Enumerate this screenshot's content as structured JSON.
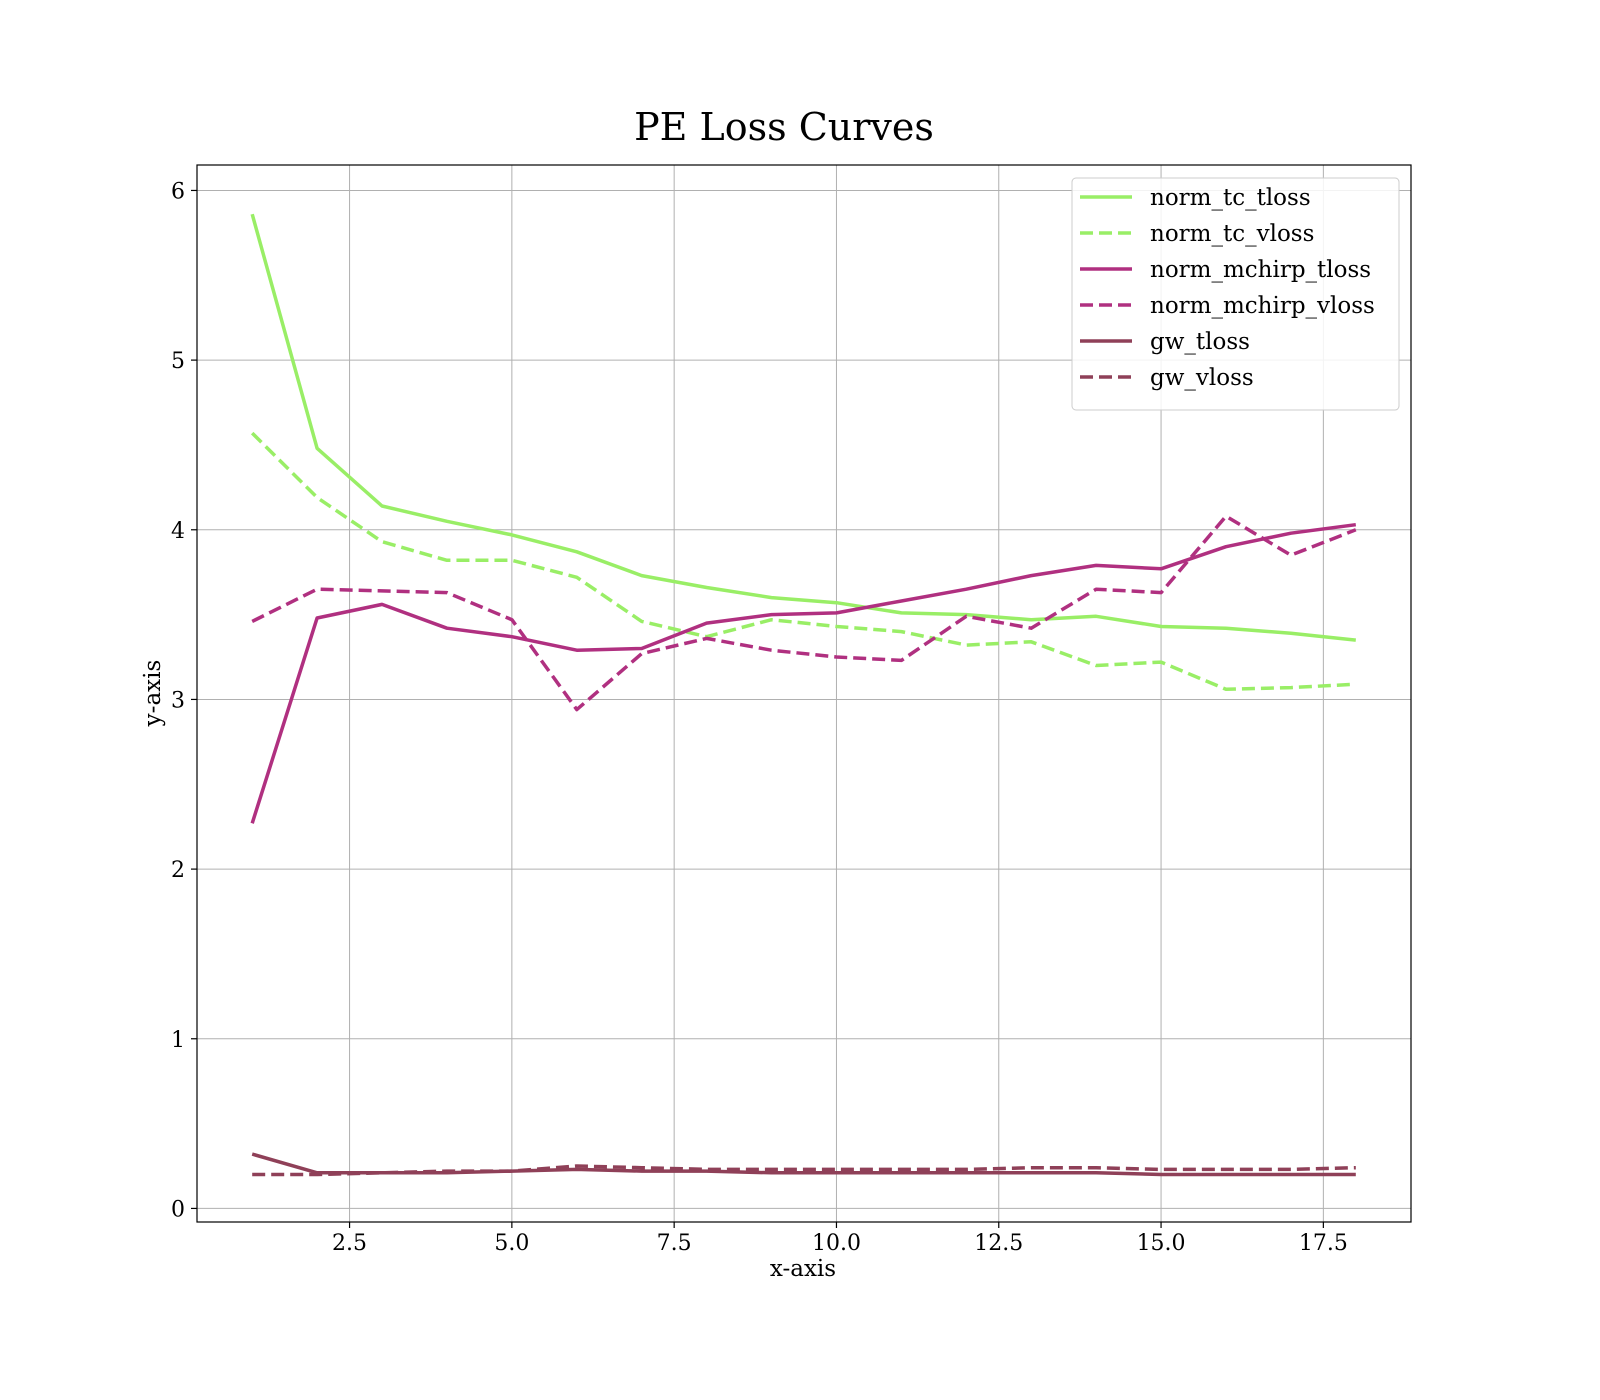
{
  "chart_data": {
    "type": "line",
    "title": "PE Loss Curves",
    "xlabel": "x-axis",
    "ylabel": "y-axis",
    "xlim": [
      0.15,
      18.85
    ],
    "ylim": [
      -0.08,
      6.15
    ],
    "xticks": [
      2.5,
      5.0,
      7.5,
      10.0,
      12.5,
      15.0,
      17.5
    ],
    "xtick_labels": [
      "2.5",
      "5.0",
      "7.5",
      "10.0",
      "12.5",
      "15.0",
      "17.5"
    ],
    "yticks": [
      0,
      1,
      2,
      3,
      4,
      5,
      6
    ],
    "ytick_labels": [
      "0",
      "1",
      "2",
      "3",
      "4",
      "5",
      "6"
    ],
    "grid": true,
    "legend_position": "top-right",
    "x": [
      1,
      2,
      3,
      4,
      5,
      6,
      7,
      8,
      9,
      10,
      11,
      12,
      13,
      14,
      15,
      16,
      17,
      18
    ],
    "series": [
      {
        "name": "norm_tc_tloss",
        "color": "#99ee66",
        "dash": "solid",
        "values": [
          5.86,
          4.48,
          4.14,
          4.05,
          3.97,
          3.87,
          3.73,
          3.66,
          3.6,
          3.57,
          3.51,
          3.5,
          3.47,
          3.49,
          3.43,
          3.42,
          3.39,
          3.35
        ]
      },
      {
        "name": "norm_tc_vloss",
        "color": "#99ee66",
        "dash": "dashed",
        "values": [
          4.57,
          4.19,
          3.93,
          3.82,
          3.82,
          3.72,
          3.46,
          3.37,
          3.47,
          3.43,
          3.4,
          3.32,
          3.34,
          3.2,
          3.22,
          3.06,
          3.07,
          3.09
        ]
      },
      {
        "name": "norm_mchirp_tloss",
        "color": "#b03080",
        "dash": "solid",
        "values": [
          2.27,
          3.48,
          3.56,
          3.42,
          3.37,
          3.29,
          3.3,
          3.45,
          3.5,
          3.51,
          3.58,
          3.65,
          3.73,
          3.79,
          3.77,
          3.9,
          3.98,
          4.03
        ]
      },
      {
        "name": "norm_mchirp_vloss",
        "color": "#b03080",
        "dash": "dashed",
        "values": [
          3.46,
          3.65,
          3.64,
          3.63,
          3.47,
          2.94,
          3.27,
          3.36,
          3.29,
          3.25,
          3.23,
          3.49,
          3.42,
          3.65,
          3.63,
          4.08,
          3.85,
          4.0
        ]
      },
      {
        "name": "gw_tloss",
        "color": "#8f4058",
        "dash": "solid",
        "values": [
          0.32,
          0.21,
          0.21,
          0.21,
          0.22,
          0.23,
          0.22,
          0.22,
          0.21,
          0.21,
          0.21,
          0.21,
          0.21,
          0.21,
          0.2,
          0.2,
          0.2,
          0.2
        ]
      },
      {
        "name": "gw_vloss",
        "color": "#8f4058",
        "dash": "dashed",
        "values": [
          0.2,
          0.2,
          0.21,
          0.22,
          0.22,
          0.25,
          0.24,
          0.23,
          0.23,
          0.23,
          0.23,
          0.23,
          0.24,
          0.24,
          0.23,
          0.23,
          0.23,
          0.24
        ]
      }
    ]
  }
}
